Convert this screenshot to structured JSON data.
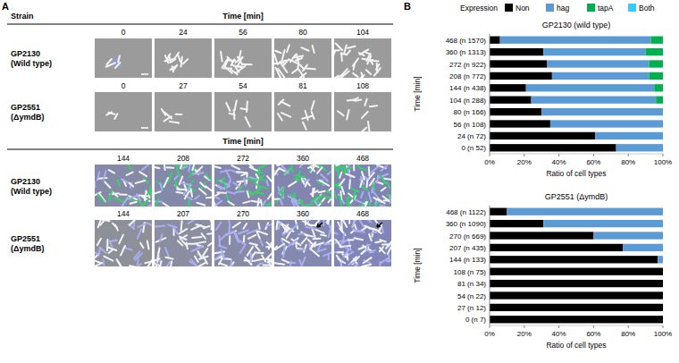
{
  "panel_a": {
    "label": "A",
    "strain_header": "Strain",
    "blocks": [
      {
        "time_label": "Time [min]",
        "rows": [
          {
            "strain": "GP2130 (Wild type)",
            "times": [
              0,
              24,
              56,
              80,
              104
            ]
          },
          {
            "strain": "GP2551 (ΔymdB)",
            "times": [
              0,
              27,
              54,
              81,
              108
            ]
          }
        ]
      },
      {
        "time_label": "Time [min]",
        "rows": [
          {
            "strain": "GP2130 (Wild type)",
            "times": [
              144,
              208,
              272,
              360,
              468
            ]
          },
          {
            "strain": "GP2551 (ΔymdB)",
            "times": [
              144,
              207,
              270,
              360,
              468
            ]
          }
        ]
      }
    ]
  },
  "panel_b": {
    "label": "B",
    "legend_title": "Expression"
  },
  "chart_data": [
    {
      "type": "bar",
      "orientation": "horizontal",
      "stacked": true,
      "legend": "top",
      "title": "GP2130 (wild type)",
      "x_label": "Ratio of cell types",
      "y_label": "Time [min]",
      "categories": [
        "0 (n 52)",
        "24 (n 72)",
        "56 (n 108)",
        "80 (n 166)",
        "104 (n 288)",
        "144 (n 438)",
        "208 (n 772)",
        "272 (n 922)",
        "360 (n 1313)",
        "468 (n 1570)"
      ],
      "series": [
        {
          "name": "Non",
          "color": "#000000",
          "values": [
            73,
            61,
            35,
            30,
            24,
            21,
            36,
            33,
            31,
            6
          ]
        },
        {
          "name": "hag",
          "color": "#5b9bd5",
          "values": [
            27,
            39,
            65,
            70,
            72,
            74,
            56,
            59,
            59,
            87
          ]
        },
        {
          "name": "tapA",
          "color": "#00b050",
          "values": [
            0,
            0,
            0,
            0,
            4,
            5,
            8,
            8,
            10,
            7
          ]
        },
        {
          "name": "Both",
          "color": "#33ccff",
          "values": [
            0,
            0,
            0,
            0,
            0,
            0,
            0,
            0,
            0,
            0
          ]
        }
      ],
      "xlim": [
        0,
        100
      ],
      "xticks": [
        {
          "value": 0,
          "label": "0%"
        },
        {
          "value": 20,
          "label": "20%"
        },
        {
          "value": 40,
          "label": "40%"
        },
        {
          "value": 60,
          "label": "60%"
        },
        {
          "value": 80,
          "label": "80%"
        },
        {
          "value": 100,
          "label": "100%"
        }
      ],
      "grid": false
    },
    {
      "type": "bar",
      "orientation": "horizontal",
      "stacked": true,
      "title": "GP2551 (ΔymdB)",
      "x_label": "Ratio of cell types",
      "y_label": "Time [min]",
      "categories": [
        "0 (n 7)",
        "27 (n 12)",
        "54 (n 22)",
        "81 (n 34)",
        "108 (n 75)",
        "144 (n 133)",
        "207 (n 435)",
        "270 (n 669)",
        "360 (n 1090)",
        "468 (n 1122)"
      ],
      "series": [
        {
          "name": "Non",
          "color": "#000000",
          "values": [
            100,
            100,
            100,
            100,
            100,
            97,
            77,
            60,
            31,
            10
          ]
        },
        {
          "name": "hag",
          "color": "#5b9bd5",
          "values": [
            0,
            0,
            0,
            0,
            0,
            3,
            23,
            40,
            69,
            90
          ]
        },
        {
          "name": "tapA",
          "color": "#00b050",
          "values": [
            0,
            0,
            0,
            0,
            0,
            0,
            0,
            0,
            0,
            0
          ]
        },
        {
          "name": "Both",
          "color": "#33ccff",
          "values": [
            0,
            0,
            0,
            0,
            0,
            0,
            0,
            0,
            0,
            0
          ]
        }
      ],
      "xlim": [
        0,
        100
      ],
      "xticks": [
        {
          "value": 0,
          "label": "0%"
        },
        {
          "value": 20,
          "label": "20%"
        },
        {
          "value": 40,
          "label": "40%"
        },
        {
          "value": 60,
          "label": "60%"
        },
        {
          "value": 80,
          "label": "80%"
        },
        {
          "value": 100,
          "label": "100%"
        }
      ],
      "grid": false
    }
  ]
}
